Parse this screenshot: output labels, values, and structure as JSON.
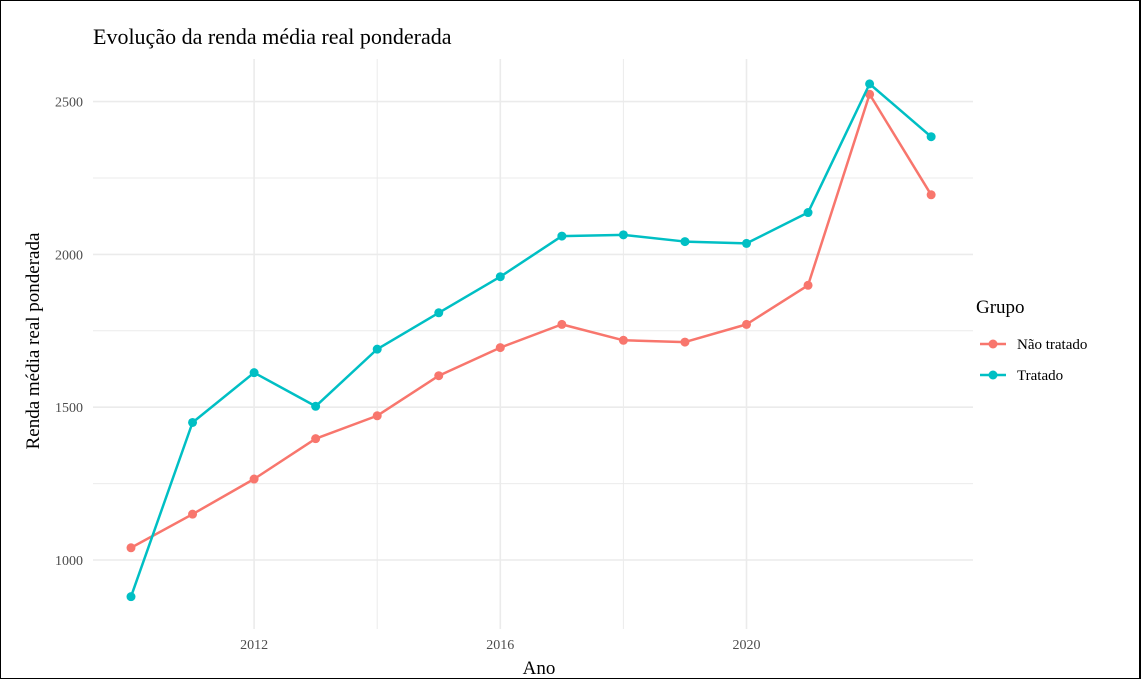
{
  "chart_data": {
    "type": "line",
    "title": "Evolução da renda média real ponderada",
    "xlabel": "Ano",
    "ylabel": "Renda média real ponderada",
    "x": [
      2010,
      2011,
      2012,
      2013,
      2014,
      2015,
      2016,
      2017,
      2018,
      2019,
      2020,
      2021,
      2022,
      2023
    ],
    "xlim": [
      2010,
      2023
    ],
    "ylim": [
      800,
      2640
    ],
    "x_ticks": [
      2012,
      2016,
      2020
    ],
    "y_ticks": [
      1000,
      1500,
      2000,
      2500
    ],
    "grid": true,
    "legend": {
      "title": "Grupo",
      "position": "right"
    },
    "series": [
      {
        "name": "Não tratado",
        "color": "#F8766D",
        "values": [
          1040,
          1150,
          1265,
          1397,
          1472,
          1603,
          1695,
          1771,
          1719,
          1713,
          1771,
          1899,
          2524,
          2195
        ]
      },
      {
        "name": "Tratado",
        "color": "#00BFC4",
        "values": [
          880,
          1450,
          1613,
          1503,
          1690,
          1809,
          1927,
          2060,
          2064,
          2042,
          2036,
          2137,
          2558,
          2385
        ]
      }
    ]
  }
}
